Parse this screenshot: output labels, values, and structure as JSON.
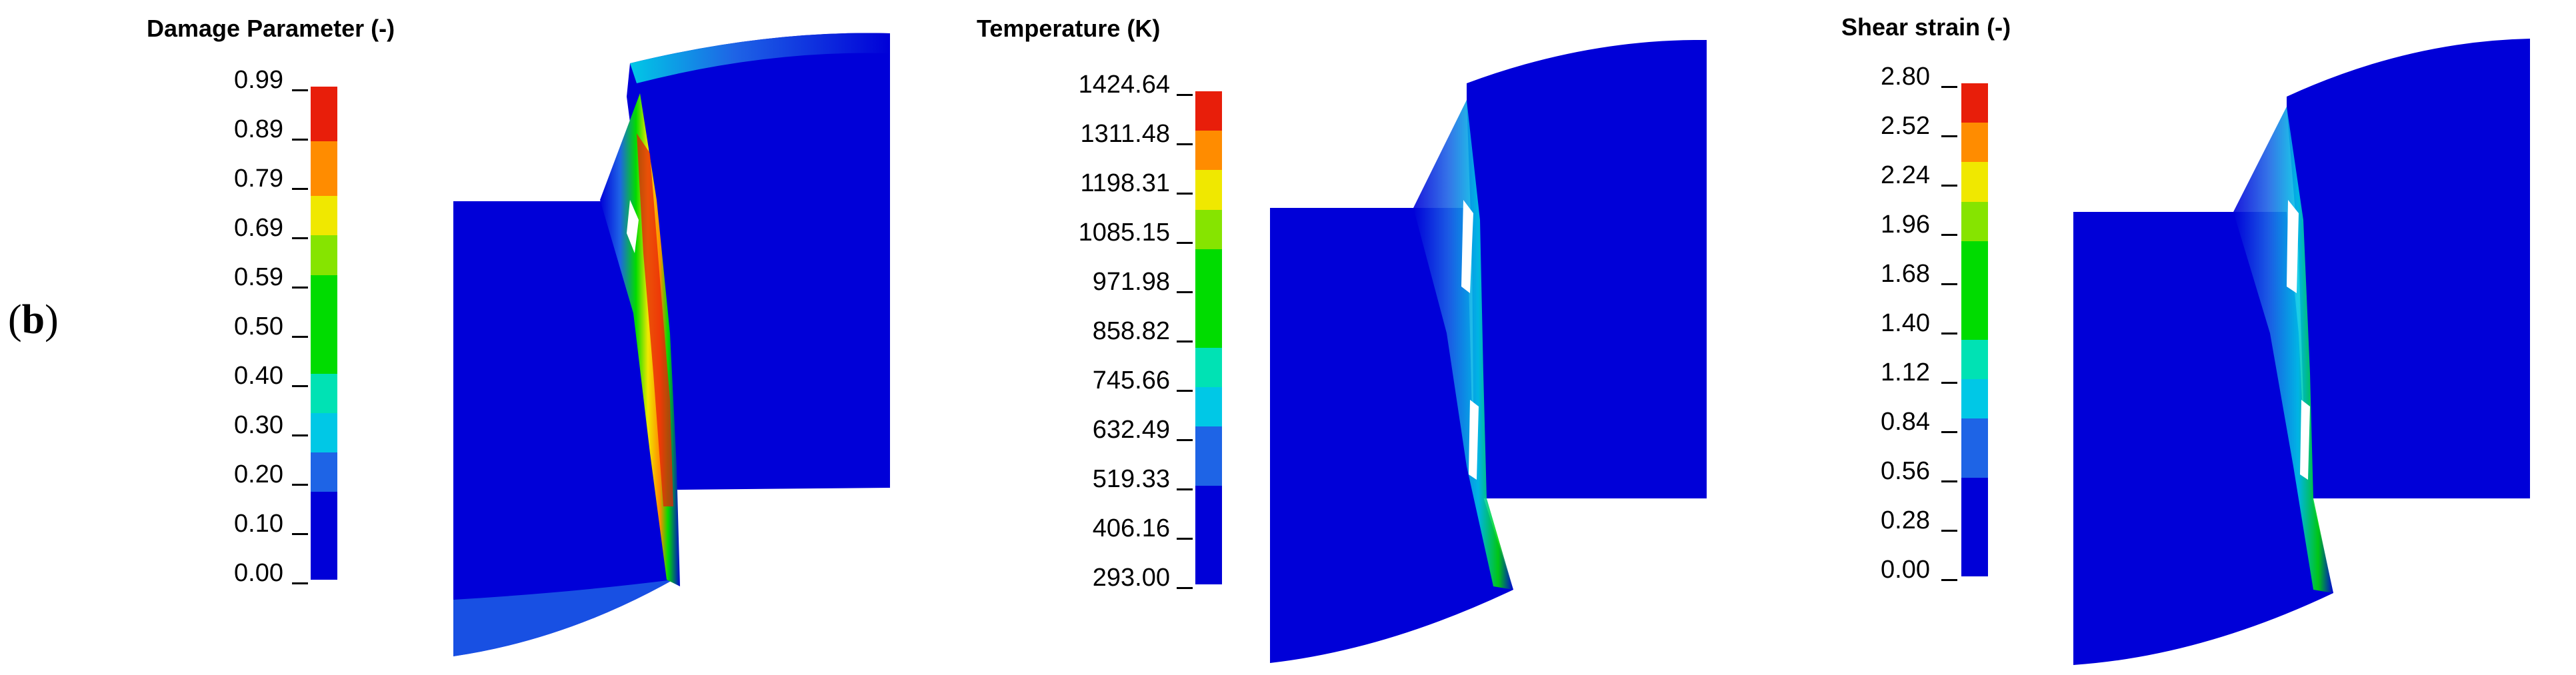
{
  "panel_label": "b",
  "colormap": [
    "#0000d8",
    "#1e64e6",
    "#00c8e6",
    "#00e2b4",
    "#00dc00",
    "#86e400",
    "#f0e800",
    "#ff8c00",
    "#e81e0a"
  ],
  "panels": [
    {
      "title": "Damage Parameter (-)",
      "ticks": [
        "0.99",
        "0.89",
        "0.79",
        "0.69",
        "0.59",
        "0.50",
        "0.40",
        "0.30",
        "0.20",
        "0.10",
        "0.00"
      ]
    },
    {
      "title": "Temperature (K)",
      "ticks": [
        "1424.64",
        "1311.48",
        "1198.31",
        "1085.15",
        "971.98",
        "858.82",
        "745.66",
        "632.49",
        "519.33",
        "406.16",
        "293.00"
      ]
    },
    {
      "title": "Shear strain (-)",
      "ticks": [
        "2.80",
        "2.52",
        "2.24",
        "1.96",
        "1.68",
        "1.40",
        "1.12",
        "0.84",
        "0.56",
        "0.28",
        "0.00"
      ]
    }
  ]
}
